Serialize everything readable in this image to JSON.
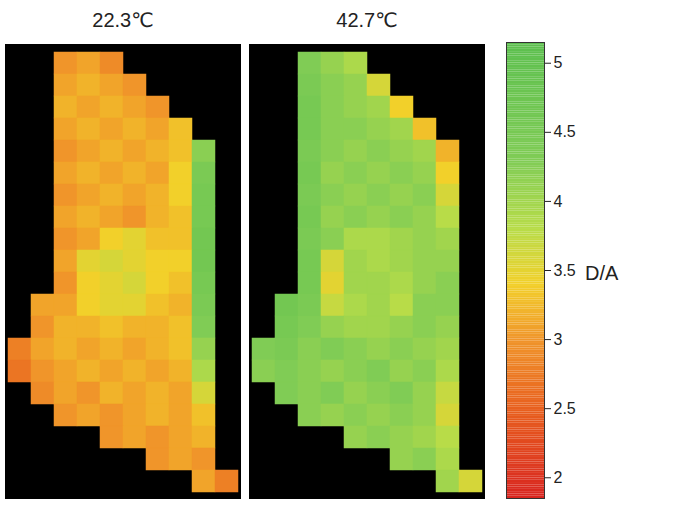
{
  "chart_data": {
    "type": "heatmap",
    "panels": [
      {
        "title": "22.3℃",
        "cells": [
          [
            null,
            null,
            3.0,
            3.1,
            2.9,
            null,
            null,
            null,
            null,
            null
          ],
          [
            null,
            null,
            3.1,
            3.2,
            3.1,
            3.0,
            null,
            null,
            null,
            null
          ],
          [
            null,
            null,
            3.2,
            3.1,
            3.2,
            3.1,
            3.0,
            null,
            null,
            null
          ],
          [
            null,
            null,
            3.1,
            3.2,
            3.1,
            3.2,
            3.1,
            3.3,
            null,
            null
          ],
          [
            null,
            null,
            3.0,
            3.1,
            3.2,
            3.1,
            3.2,
            3.3,
            4.2,
            null
          ],
          [
            null,
            null,
            3.1,
            3.2,
            3.1,
            3.2,
            3.1,
            3.4,
            4.4,
            null
          ],
          [
            null,
            null,
            3.0,
            3.1,
            3.2,
            3.1,
            3.2,
            3.4,
            4.5,
            null
          ],
          [
            null,
            null,
            3.1,
            3.2,
            3.1,
            3.0,
            3.2,
            3.3,
            4.5,
            null
          ],
          [
            null,
            null,
            3.0,
            3.1,
            3.4,
            3.5,
            3.3,
            3.3,
            4.6,
            null
          ],
          [
            null,
            null,
            3.1,
            3.5,
            3.6,
            3.5,
            3.4,
            3.4,
            4.6,
            null
          ],
          [
            null,
            null,
            3.0,
            3.4,
            3.5,
            3.6,
            3.4,
            3.3,
            4.5,
            null
          ],
          [
            null,
            3.1,
            3.1,
            3.4,
            3.5,
            3.5,
            3.3,
            3.2,
            4.4,
            null
          ],
          [
            null,
            3.0,
            3.2,
            3.2,
            3.3,
            3.2,
            3.2,
            3.3,
            4.3,
            null
          ],
          [
            2.8,
            3.1,
            3.2,
            3.1,
            3.2,
            3.1,
            3.2,
            3.3,
            4.1,
            null
          ],
          [
            2.7,
            3.0,
            3.1,
            3.2,
            3.1,
            3.2,
            3.1,
            3.2,
            3.9,
            null
          ],
          [
            null,
            2.9,
            3.1,
            3.0,
            3.2,
            3.1,
            3.2,
            3.1,
            3.6,
            null
          ],
          [
            null,
            null,
            3.0,
            3.1,
            3.0,
            3.1,
            3.2,
            3.1,
            3.3,
            null
          ],
          [
            null,
            null,
            null,
            null,
            3.0,
            3.1,
            3.0,
            3.1,
            3.2,
            null
          ],
          [
            null,
            null,
            null,
            null,
            null,
            null,
            3.0,
            3.1,
            3.0,
            null
          ],
          [
            null,
            null,
            null,
            null,
            null,
            null,
            null,
            null,
            3.1,
            2.8
          ]
        ]
      },
      {
        "title": "42.7℃",
        "cells": [
          [
            null,
            null,
            4.3,
            4.1,
            3.9,
            null,
            null,
            null,
            null,
            null
          ],
          [
            null,
            null,
            4.4,
            4.2,
            4.1,
            3.6,
            null,
            null,
            null,
            null
          ],
          [
            null,
            null,
            4.5,
            4.2,
            4.1,
            4.0,
            3.4,
            null,
            null,
            null
          ],
          [
            null,
            null,
            4.5,
            4.2,
            4.2,
            4.1,
            4.0,
            3.3,
            null,
            null
          ],
          [
            null,
            null,
            4.4,
            4.2,
            4.1,
            4.2,
            4.1,
            4.0,
            3.2,
            null
          ],
          [
            null,
            null,
            4.5,
            4.1,
            4.2,
            4.1,
            4.2,
            4.1,
            3.4,
            null
          ],
          [
            null,
            null,
            4.4,
            4.2,
            4.1,
            4.2,
            4.1,
            4.2,
            3.6,
            null
          ],
          [
            null,
            null,
            4.5,
            4.1,
            4.2,
            4.1,
            4.2,
            4.1,
            3.8,
            null
          ],
          [
            null,
            null,
            4.4,
            4.2,
            3.9,
            3.9,
            4.0,
            4.1,
            4.0,
            null
          ],
          [
            null,
            null,
            4.5,
            3.6,
            4.0,
            3.9,
            4.0,
            4.1,
            4.1,
            null
          ],
          [
            null,
            null,
            4.5,
            3.5,
            4.0,
            4.0,
            3.9,
            4.1,
            4.2,
            null
          ],
          [
            null,
            4.6,
            4.4,
            3.7,
            3.9,
            4.0,
            3.8,
            4.2,
            4.2,
            null
          ],
          [
            null,
            4.5,
            4.3,
            4.1,
            4.0,
            4.0,
            4.1,
            4.2,
            4.1,
            null
          ],
          [
            4.3,
            4.4,
            4.2,
            4.3,
            4.2,
            4.1,
            4.2,
            4.1,
            4.0,
            null
          ],
          [
            4.2,
            4.3,
            4.2,
            4.1,
            4.2,
            4.3,
            4.1,
            4.2,
            3.9,
            null
          ],
          [
            null,
            4.3,
            4.2,
            4.3,
            4.1,
            4.2,
            4.3,
            4.1,
            3.7,
            null
          ],
          [
            null,
            null,
            4.2,
            4.1,
            4.2,
            4.1,
            4.2,
            4.1,
            3.6,
            null
          ],
          [
            null,
            null,
            null,
            null,
            4.1,
            4.2,
            4.1,
            4.0,
            3.8,
            null
          ],
          [
            null,
            null,
            null,
            null,
            null,
            null,
            4.1,
            4.2,
            3.9,
            null
          ],
          [
            null,
            null,
            null,
            null,
            null,
            null,
            null,
            null,
            4.0,
            3.6
          ]
        ]
      }
    ],
    "colorbar": {
      "label": "D/A",
      "range": [
        1.85,
        5.15
      ],
      "ticks": [
        2,
        2.5,
        3,
        3.5,
        4,
        4.5,
        5
      ]
    }
  }
}
